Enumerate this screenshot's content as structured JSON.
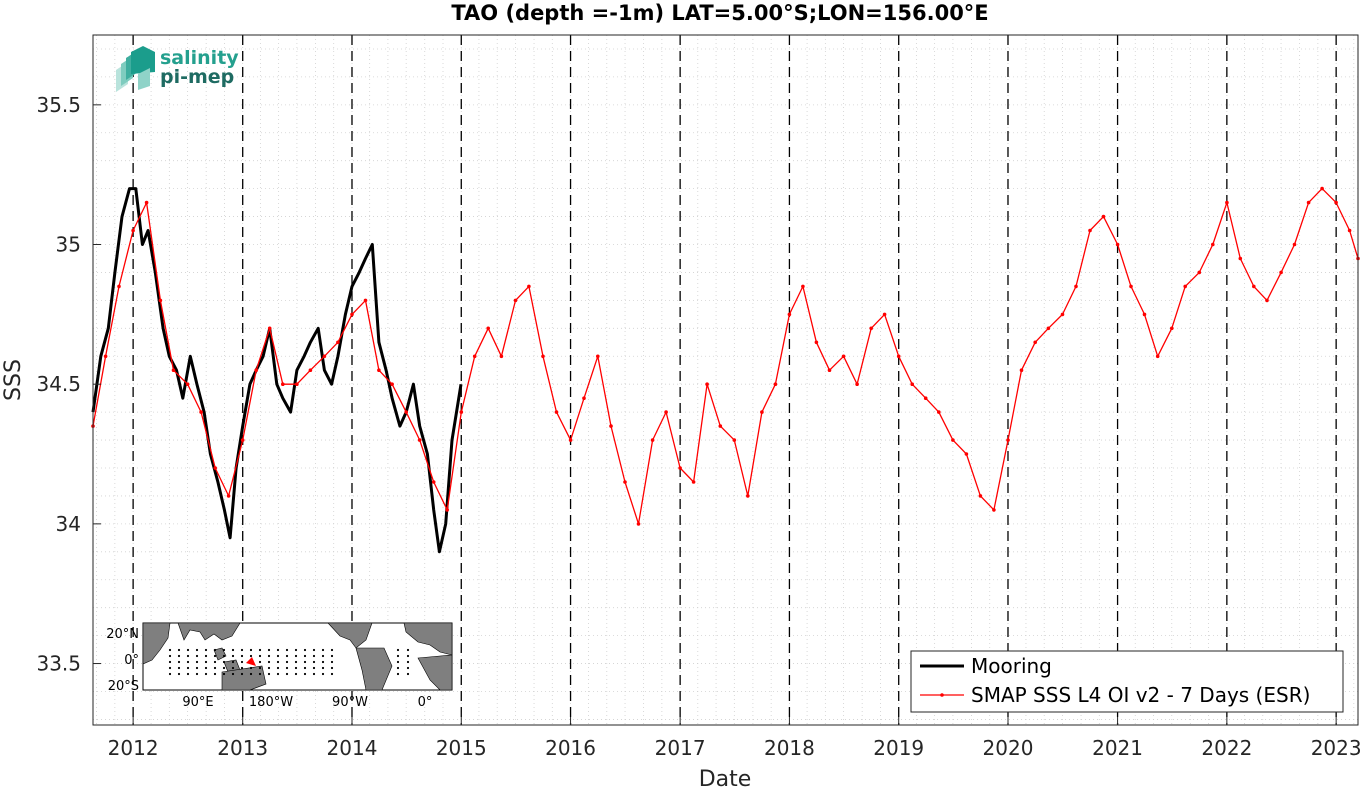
{
  "chart_data": {
    "type": "line",
    "title": "TAO (depth =-1m) LAT=5.00°S;LON=156.00°E",
    "xlabel": "Date",
    "ylabel": "SSS",
    "xlim": [
      "2011-08-20",
      "2023-03-15"
    ],
    "ylim": [
      33.28,
      35.75
    ],
    "xticks": [
      "2012",
      "2013",
      "2014",
      "2015",
      "2016",
      "2017",
      "2018",
      "2019",
      "2020",
      "2021",
      "2022",
      "2023"
    ],
    "yticks": [
      "33.5",
      "34",
      "34.5",
      "35",
      "35.5"
    ],
    "grid": "minor dotted",
    "year_boundaries": "dashed vertical lines at each January 1",
    "legend_position": "bottom-right",
    "legend": [
      "Mooring",
      "SMAP SSS L4 OI v2 - 7 Days (ESR)"
    ],
    "series": [
      {
        "name": "Mooring",
        "color": "#000000",
        "x": [
          "2011-08-20",
          "2011-09-15",
          "2011-10-10",
          "2011-11-01",
          "2011-11-25",
          "2011-12-20",
          "2012-01-10",
          "2012-02-01",
          "2012-02-20",
          "2012-03-15",
          "2012-04-10",
          "2012-05-01",
          "2012-05-25",
          "2012-06-15",
          "2012-07-10",
          "2012-08-01",
          "2012-08-25",
          "2012-09-15",
          "2012-10-10",
          "2012-11-01",
          "2012-11-20",
          "2012-12-10",
          "2013-01-01",
          "2013-01-25",
          "2013-02-15",
          "2013-03-10",
          "2013-04-01",
          "2013-04-25",
          "2013-05-15",
          "2013-06-10",
          "2013-07-01",
          "2013-07-25",
          "2013-08-15",
          "2013-09-10",
          "2013-10-01",
          "2013-10-25",
          "2013-11-15",
          "2013-12-10",
          "2014-01-01",
          "2014-01-25",
          "2014-02-15",
          "2014-03-10",
          "2014-04-01",
          "2014-04-25",
          "2014-05-15",
          "2014-06-10",
          "2014-07-01",
          "2014-07-25",
          "2014-08-15",
          "2014-09-10",
          "2014-10-01",
          "2014-10-20",
          "2014-11-10",
          "2014-12-01",
          "2014-12-31"
        ],
        "y": [
          34.4,
          34.6,
          34.7,
          34.9,
          35.1,
          35.2,
          35.2,
          35.0,
          35.05,
          34.9,
          34.7,
          34.6,
          34.55,
          34.45,
          34.6,
          34.5,
          34.4,
          34.25,
          34.15,
          34.05,
          33.95,
          34.2,
          34.35,
          34.5,
          34.55,
          34.6,
          34.7,
          34.5,
          34.45,
          34.4,
          34.55,
          34.6,
          34.65,
          34.7,
          34.55,
          34.5,
          34.6,
          34.75,
          34.85,
          34.9,
          34.95,
          35.0,
          34.65,
          34.55,
          34.45,
          34.35,
          34.4,
          34.5,
          34.35,
          34.25,
          34.05,
          33.9,
          34.0,
          34.3,
          34.5
        ]
      },
      {
        "name": "SMAP SSS L4 OI v2 - 7 Days (ESR)",
        "color": "#ff0000",
        "x": [
          "2011-08-20",
          "2011-10-01",
          "2011-11-15",
          "2012-01-01",
          "2012-02-15",
          "2012-04-01",
          "2012-05-15",
          "2012-07-01",
          "2012-08-15",
          "2012-10-01",
          "2012-11-15",
          "2013-01-01",
          "2013-02-15",
          "2013-04-01",
          "2013-05-15",
          "2013-07-01",
          "2013-08-15",
          "2013-10-01",
          "2013-11-15",
          "2014-01-01",
          "2014-02-15",
          "2014-04-01",
          "2014-05-15",
          "2014-07-01",
          "2014-08-15",
          "2014-10-01",
          "2014-11-15",
          "2015-01-01",
          "2015-02-15",
          "2015-04-01",
          "2015-05-15",
          "2015-07-01",
          "2015-08-15",
          "2015-10-01",
          "2015-11-15",
          "2016-01-01",
          "2016-02-15",
          "2016-04-01",
          "2016-05-15",
          "2016-07-01",
          "2016-08-15",
          "2016-10-01",
          "2016-11-15",
          "2017-01-01",
          "2017-02-15",
          "2017-04-01",
          "2017-05-15",
          "2017-07-01",
          "2017-08-15",
          "2017-10-01",
          "2017-11-15",
          "2018-01-01",
          "2018-02-15",
          "2018-04-01",
          "2018-05-15",
          "2018-07-01",
          "2018-08-15",
          "2018-10-01",
          "2018-11-15",
          "2019-01-01",
          "2019-02-15",
          "2019-04-01",
          "2019-05-15",
          "2019-07-01",
          "2019-08-15",
          "2019-10-01",
          "2019-11-15",
          "2020-01-01",
          "2020-02-15",
          "2020-04-01",
          "2020-05-15",
          "2020-07-01",
          "2020-08-15",
          "2020-10-01",
          "2020-11-15",
          "2021-01-01",
          "2021-02-15",
          "2021-04-01",
          "2021-05-15",
          "2021-07-01",
          "2021-08-15",
          "2021-10-01",
          "2021-11-15",
          "2022-01-01",
          "2022-02-15",
          "2022-04-01",
          "2022-05-15",
          "2022-07-01",
          "2022-08-15",
          "2022-10-01",
          "2022-11-15",
          "2023-01-01",
          "2023-02-15",
          "2023-03-15"
        ],
        "y": [
          34.35,
          34.6,
          34.85,
          35.05,
          35.15,
          34.8,
          34.55,
          34.5,
          34.4,
          34.2,
          34.1,
          34.3,
          34.55,
          34.7,
          34.5,
          34.5,
          34.55,
          34.6,
          34.65,
          34.75,
          34.8,
          34.55,
          34.5,
          34.4,
          34.3,
          34.15,
          34.05,
          34.4,
          34.6,
          34.7,
          34.6,
          34.8,
          34.85,
          34.6,
          34.4,
          34.3,
          34.45,
          34.6,
          34.35,
          34.15,
          34.0,
          34.3,
          34.4,
          34.2,
          34.15,
          34.5,
          34.35,
          34.3,
          34.1,
          34.4,
          34.5,
          34.75,
          34.85,
          34.65,
          34.55,
          34.6,
          34.5,
          34.7,
          34.75,
          34.6,
          34.5,
          34.45,
          34.4,
          34.3,
          34.25,
          34.1,
          34.05,
          34.3,
          34.55,
          34.65,
          34.7,
          34.75,
          34.85,
          35.05,
          35.1,
          35.0,
          34.85,
          34.75,
          34.6,
          34.7,
          34.85,
          34.9,
          35.0,
          35.15,
          34.95,
          34.85,
          34.8,
          34.9,
          35.0,
          35.15,
          35.2,
          35.15,
          35.05,
          34.95
        ]
      }
    ],
    "annotations": [
      "salinity",
      "pi-mep"
    ],
    "inset_map": {
      "lat_ticks": [
        "20°N",
        "0°",
        "20°S"
      ],
      "lon_ticks": [
        "90°E",
        "180°W",
        "90°W",
        "0°"
      ],
      "marker_color": "#ff0000"
    }
  }
}
